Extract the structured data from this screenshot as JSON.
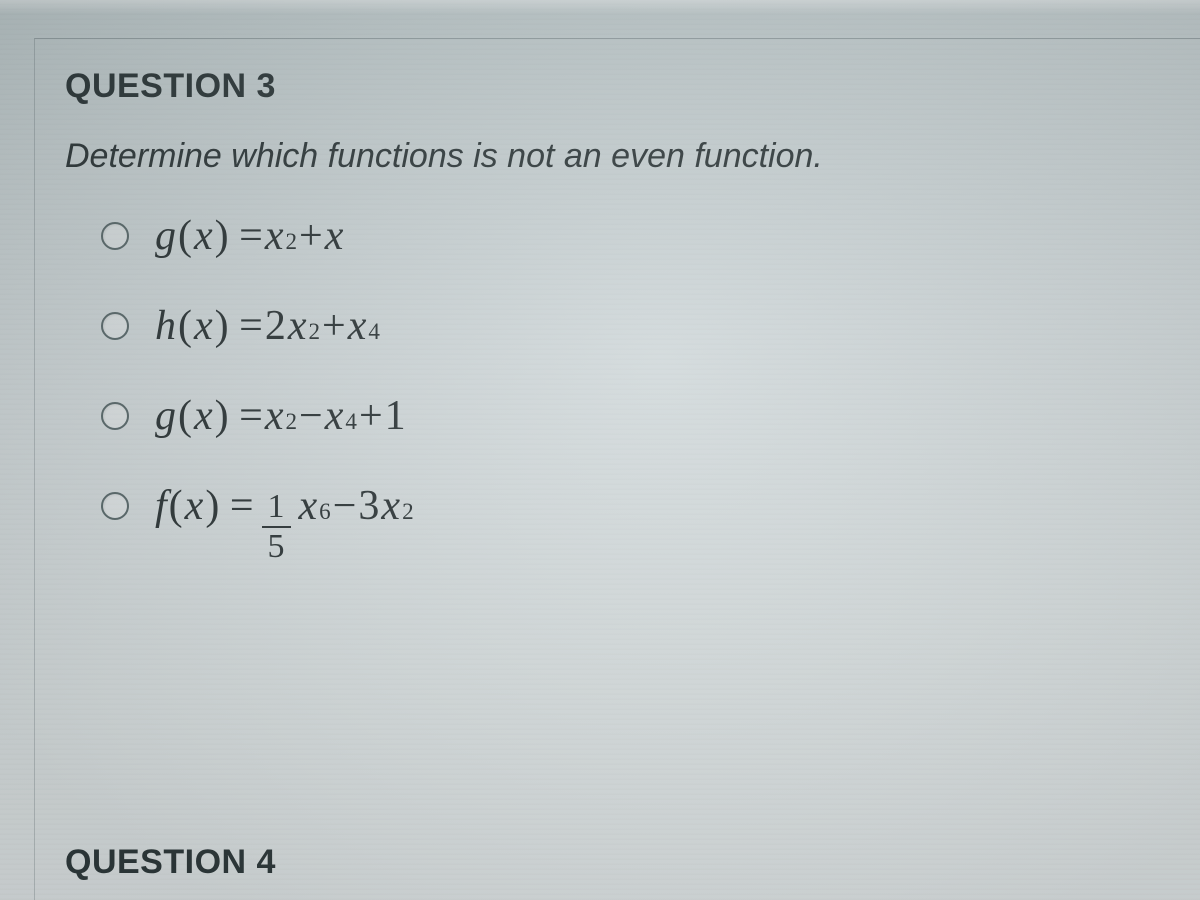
{
  "question": {
    "header": "QUESTION 3",
    "prompt": "Determine which functions is not an even function.",
    "options": [
      {
        "fn_name": "g",
        "open": "(",
        "var": "x",
        "close": ") = ",
        "terms": [
          {
            "coef": "",
            "var": "x",
            "sup": "2"
          },
          {
            "op": " + ",
            "coef": "",
            "var": "x",
            "sup": ""
          }
        ]
      },
      {
        "fn_name": "h",
        "open": "(",
        "var": "x",
        "close": ") = ",
        "terms": [
          {
            "coef": "2",
            "var": "x",
            "sup": "2"
          },
          {
            "op": " + ",
            "coef": "",
            "var": "x",
            "sup": "4"
          }
        ]
      },
      {
        "fn_name": "g",
        "open": "(",
        "var": "x",
        "close": ") = ",
        "terms": [
          {
            "coef": "",
            "var": "x",
            "sup": "2"
          },
          {
            "op": " − ",
            "coef": "",
            "var": "x",
            "sup": "4"
          },
          {
            "op": " + ",
            "coef": "1",
            "var": "",
            "sup": ""
          }
        ]
      },
      {
        "fn_name": "f",
        "open": "(",
        "var": "x",
        "close": ") = ",
        "frac": {
          "num": "1",
          "den": "5"
        },
        "terms": [
          {
            "coef": "",
            "var": "x",
            "sup": "6"
          },
          {
            "op": " − ",
            "coef": "3",
            "var": "x",
            "sup": "2"
          }
        ]
      }
    ]
  },
  "next_header": "QUESTION 4",
  "style": {
    "text_color": "#2d3638",
    "header_fontsize": 34,
    "prompt_fontsize": 34,
    "math_fontsize": 42,
    "radio_border": "#5a6a6c",
    "background_gradient": [
      "#b8c4c6",
      "#dde3e4"
    ]
  }
}
